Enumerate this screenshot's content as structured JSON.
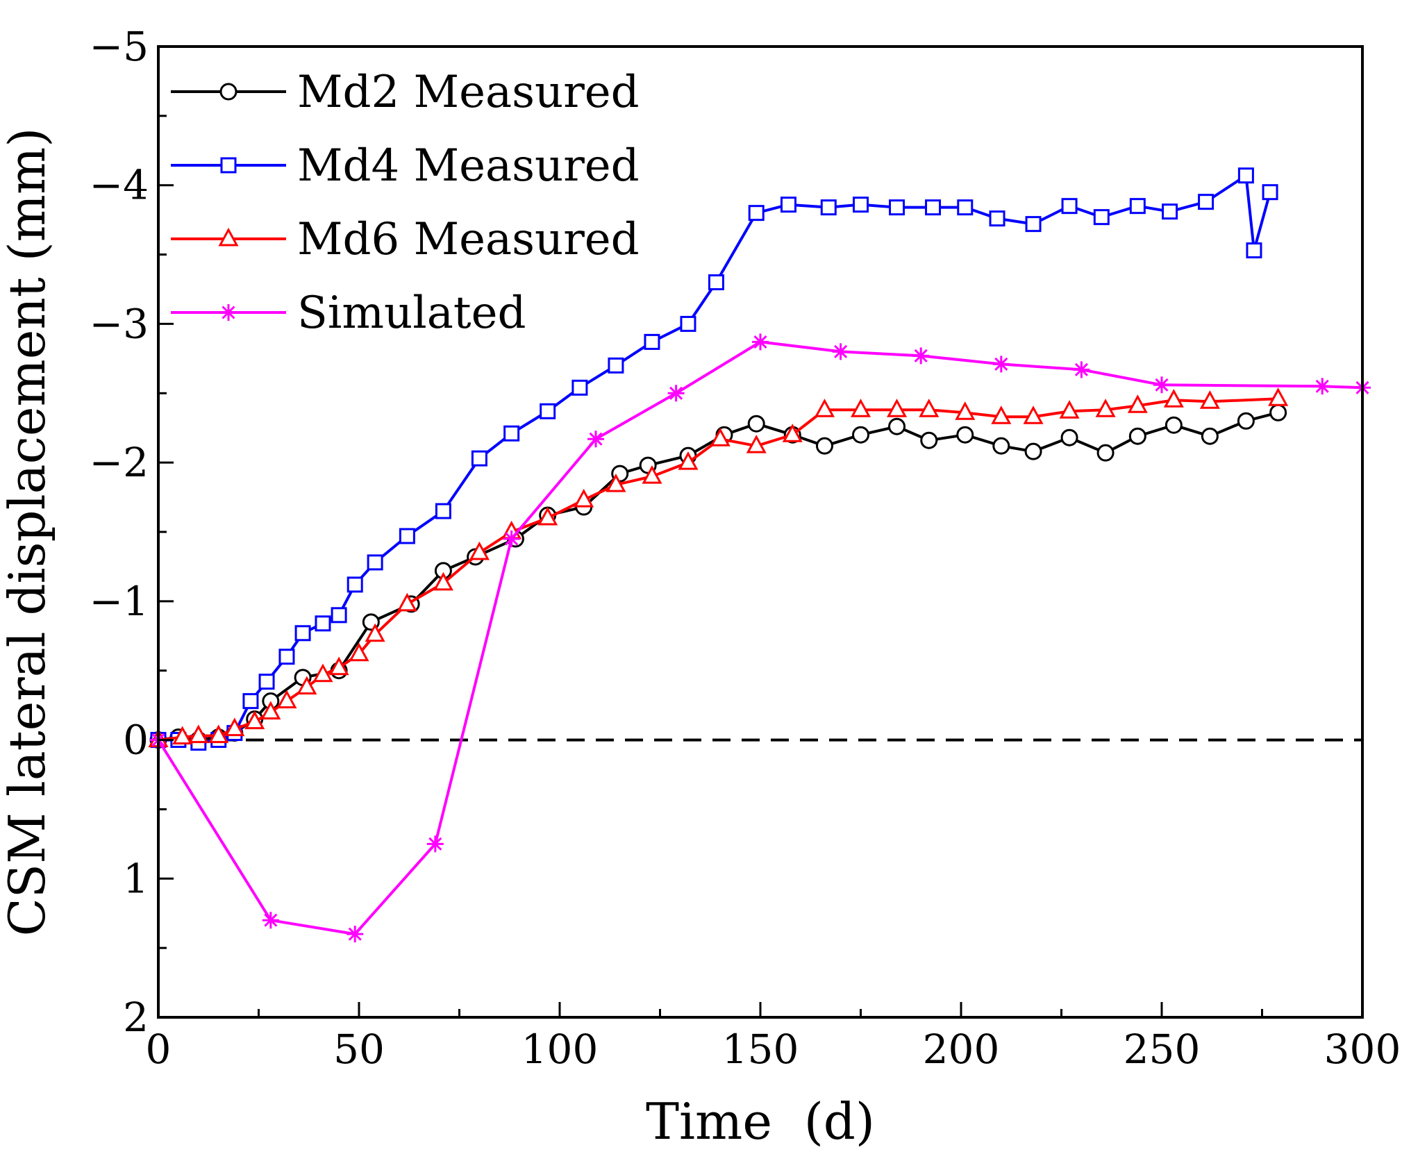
{
  "chart_data": {
    "type": "line",
    "xlabel": "Time  (d)",
    "ylabel": "CSM lateral displacement (mm)",
    "xlim": [
      0,
      300
    ],
    "ylim": [
      2,
      -5
    ],
    "y_axis_inverted": true,
    "xticks": [
      0,
      50,
      100,
      150,
      200,
      250,
      300
    ],
    "xtick_labels": [
      "0",
      "50",
      "100",
      "150",
      "200",
      "250",
      "300"
    ],
    "yticks": [
      -5,
      -4,
      -3,
      -2,
      -1,
      0,
      1,
      2
    ],
    "ytick_labels": [
      "−5",
      "−4",
      "−3",
      "−2",
      "−1",
      "0",
      "1",
      "2"
    ],
    "grid": false,
    "legend_position": "top-left",
    "reference_line": {
      "y": 0,
      "style": "dashed",
      "color": "#000000"
    },
    "series": [
      {
        "name": "Md2 Measured",
        "color": "#000000",
        "marker": "circle",
        "x": [
          0,
          5,
          10,
          15,
          19,
          24,
          28,
          36,
          45,
          53,
          63,
          71,
          79,
          89,
          97,
          106,
          115,
          122,
          132,
          141,
          149,
          158,
          166,
          175,
          184,
          192,
          201,
          210,
          218,
          227,
          236,
          244,
          253,
          262,
          271,
          279
        ],
        "y": [
          0,
          -0.02,
          0,
          -0.02,
          -0.05,
          -0.15,
          -0.28,
          -0.45,
          -0.5,
          -0.85,
          -0.98,
          -1.22,
          -1.32,
          -1.45,
          -1.62,
          -1.68,
          -1.92,
          -1.98,
          -2.05,
          -2.2,
          -2.28,
          -2.2,
          -2.12,
          -2.2,
          -2.26,
          -2.16,
          -2.2,
          -2.12,
          -2.08,
          -2.18,
          -2.07,
          -2.19,
          -2.27,
          -2.19,
          -2.3,
          -2.36
        ]
      },
      {
        "name": "Md4 Measured",
        "color": "#0000ff",
        "marker": "square",
        "x": [
          0,
          5,
          10,
          15,
          19,
          23,
          27,
          32,
          36,
          41,
          45,
          49,
          54,
          62,
          71,
          80,
          88,
          97,
          105,
          114,
          123,
          132,
          139,
          149,
          157,
          167,
          175,
          184,
          193,
          201,
          209,
          218,
          227,
          235,
          244,
          252,
          261,
          271,
          273,
          277
        ],
        "y": [
          0,
          0,
          0.02,
          0,
          -0.05,
          -0.28,
          -0.42,
          -0.6,
          -0.77,
          -0.84,
          -0.9,
          -1.12,
          -1.28,
          -1.47,
          -1.65,
          -2.03,
          -2.21,
          -2.37,
          -2.54,
          -2.7,
          -2.87,
          -3.0,
          -3.3,
          -3.8,
          -3.86,
          -3.84,
          -3.86,
          -3.84,
          -3.84,
          -3.84,
          -3.76,
          -3.72,
          -3.85,
          -3.77,
          -3.85,
          -3.81,
          -3.88,
          -4.07,
          -3.53,
          -3.95
        ]
      },
      {
        "name": "Md6 Measured",
        "color": "#ff0000",
        "marker": "triangle",
        "x": [
          0,
          6,
          10,
          15,
          19,
          24,
          28,
          32,
          37,
          41,
          45,
          50,
          54,
          62,
          71,
          80,
          88,
          97,
          106,
          114,
          123,
          132,
          140,
          149,
          158,
          166,
          175,
          184,
          192,
          201,
          210,
          218,
          227,
          236,
          244,
          253,
          262,
          279
        ],
        "y": [
          0,
          -0.02,
          -0.03,
          -0.03,
          -0.08,
          -0.13,
          -0.2,
          -0.28,
          -0.38,
          -0.47,
          -0.52,
          -0.62,
          -0.76,
          -0.98,
          -1.13,
          -1.35,
          -1.5,
          -1.6,
          -1.73,
          -1.84,
          -1.9,
          -2.0,
          -2.17,
          -2.12,
          -2.2,
          -2.38,
          -2.38,
          -2.38,
          -2.38,
          -2.36,
          -2.33,
          -2.33,
          -2.37,
          -2.38,
          -2.41,
          -2.45,
          -2.44,
          -2.46
        ]
      },
      {
        "name": "Simulated",
        "color": "#ff00ff",
        "marker": "asterisk",
        "x": [
          0,
          28,
          49,
          69,
          88,
          109,
          129,
          150,
          170,
          190,
          210,
          230,
          250,
          290,
          300
        ],
        "y": [
          0,
          1.3,
          1.4,
          0.75,
          -1.45,
          -2.17,
          -2.5,
          -2.87,
          -2.8,
          -2.77,
          -2.71,
          -2.67,
          -2.56,
          -2.55,
          -2.54
        ]
      }
    ]
  }
}
